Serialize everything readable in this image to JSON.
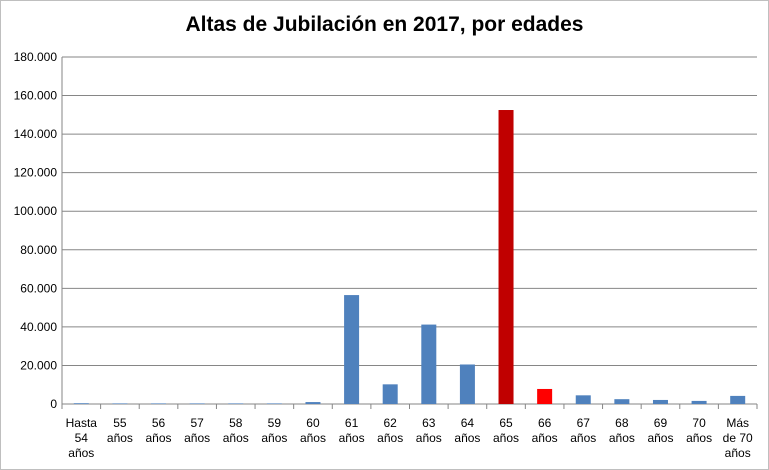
{
  "chart_data": {
    "type": "bar",
    "title": "Altas de Jubilación en 2017, por edades",
    "xlabel": "",
    "ylabel": "",
    "ylim": [
      0,
      180000
    ],
    "yticks": [
      "0",
      "20.000",
      "40.000",
      "60.000",
      "80.000",
      "100.000",
      "120.000",
      "140.000",
      "160.000",
      "180.000"
    ],
    "grid": true,
    "legend": "none",
    "categories": [
      [
        "Hasta",
        "54",
        "años"
      ],
      [
        "55",
        "años"
      ],
      [
        "56",
        "años"
      ],
      [
        "57",
        "años"
      ],
      [
        "58",
        "años"
      ],
      [
        "59",
        "años"
      ],
      [
        "60",
        "años"
      ],
      [
        "61",
        "años"
      ],
      [
        "62",
        "años"
      ],
      [
        "63",
        "años"
      ],
      [
        "64",
        "años"
      ],
      [
        "65",
        "años"
      ],
      [
        "66",
        "años"
      ],
      [
        "67",
        "años"
      ],
      [
        "68",
        "años"
      ],
      [
        "69",
        "años"
      ],
      [
        "70",
        "años"
      ],
      [
        "Más",
        "de 70",
        "años"
      ]
    ],
    "values": [
      400,
      300,
      300,
      300,
      300,
      300,
      1000,
      56500,
      10200,
      41200,
      20500,
      152500,
      7800,
      4500,
      2500,
      2100,
      1600,
      4200
    ],
    "colors": {
      "default": "#4f81bd",
      "highlight": {
        "11": "#c00000",
        "12": "#ff0000"
      },
      "grid": "#868686"
    }
  }
}
